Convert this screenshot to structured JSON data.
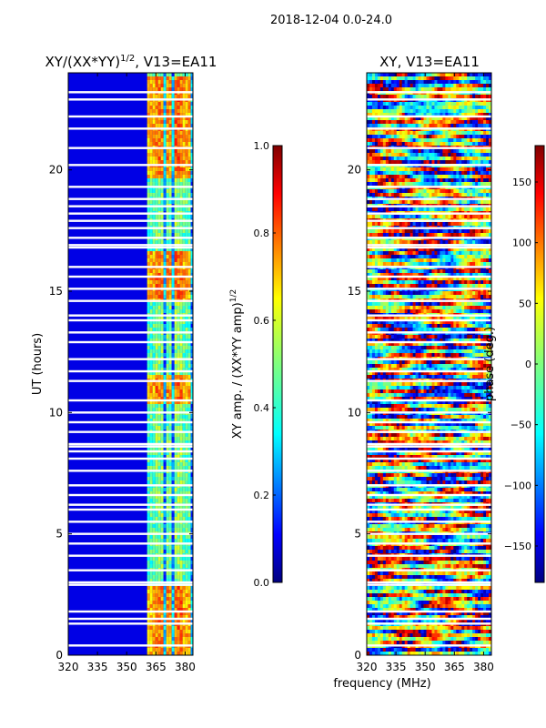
{
  "figure": {
    "suptitle": "2018-12-04 0.0-24.0"
  },
  "colors": {
    "jet": [
      "#00007f",
      "#0000ff",
      "#007fff",
      "#00ffff",
      "#7fff7f",
      "#ffff00",
      "#ff7f00",
      "#ff0000",
      "#7f0000"
    ],
    "background": "#ffffff",
    "gap": "#ffffff"
  },
  "chart_data": [
    {
      "type": "heatmap",
      "title_text": "XY/(XX*YY)",
      "title_exp": "1/2",
      "title_suffix": ", V13=EA11",
      "xlabel": "",
      "ylabel": "UT (hours)",
      "xlim": [
        320,
        384
      ],
      "ylim": [
        0,
        24
      ],
      "xticks": [
        320,
        335,
        350,
        365,
        380
      ],
      "yticks": [
        0,
        5,
        10,
        15,
        20
      ],
      "colorbar": {
        "label_text": "XY amp. / (XX*YY amp)",
        "label_exp": "1/2",
        "range": [
          0.0,
          1.0
        ],
        "ticks": [
          0.0,
          0.2,
          0.4,
          0.6,
          0.8,
          1.0
        ],
        "tick_labels": [
          "0.0",
          "0.2",
          "0.4",
          "0.6",
          "0.8",
          "1.0"
        ]
      },
      "active_band_mhz": [
        360.5,
        383
      ],
      "background_value": 0.1,
      "band_stripes": [
        {
          "center": 362,
          "value": 0.45
        },
        {
          "center": 366,
          "value": 0.5
        },
        {
          "center": 371,
          "value": 0.48
        },
        {
          "center": 376,
          "value": 0.52
        },
        {
          "center": 380,
          "value": 0.46
        }
      ],
      "bright_intervals": [
        [
          0.0,
          2.8
        ],
        [
          10.3,
          11.6
        ],
        [
          14.6,
          16.6
        ],
        [
          19.7,
          23.9
        ]
      ],
      "gap_rows_ut": [
        0.4,
        1.3,
        1.5,
        1.8,
        2.9,
        3.0,
        3.5,
        4.1,
        4.6,
        5.0,
        5.5,
        6.0,
        6.2,
        6.6,
        7.0,
        7.6,
        8.1,
        8.4,
        8.6,
        8.7,
        9.2,
        9.6,
        10.0,
        10.5,
        11.3,
        11.7,
        12.2,
        12.9,
        13.3,
        13.8,
        14.0,
        14.6,
        15.1,
        15.6,
        16.0,
        16.8,
        16.9,
        17.2,
        17.6,
        17.9,
        18.2,
        18.5,
        18.8,
        19.3,
        20.2,
        20.9,
        21.7,
        22.2,
        22.9,
        23.2
      ]
    },
    {
      "type": "heatmap",
      "title_text": "XY, V13=EA11",
      "xlabel": "frequency (MHz)",
      "ylabel": "",
      "xlim": [
        320,
        384
      ],
      "ylim": [
        0,
        24
      ],
      "xticks": [
        320,
        335,
        350,
        365,
        380
      ],
      "yticks": [
        0,
        5,
        10,
        15,
        20
      ],
      "colorbar": {
        "label_text": "phase (deg.)",
        "range": [
          -180,
          180
        ],
        "ticks": [
          -150,
          -100,
          -50,
          0,
          50,
          100,
          150
        ],
        "tick_labels": [
          "−150",
          "−100",
          "−50",
          "0",
          "50",
          "100",
          "150"
        ]
      },
      "gap_rows_ut": [
        0.4,
        1.3,
        1.5,
        1.8,
        2.9,
        3.0,
        3.5,
        4.1,
        4.6,
        5.0,
        5.5,
        6.0,
        6.2,
        6.6,
        7.0,
        7.6,
        8.1,
        8.4,
        8.6,
        8.7,
        9.2,
        9.6,
        10.0,
        10.5,
        11.3,
        11.7,
        12.2,
        12.9,
        13.3,
        13.8,
        14.0,
        14.6,
        15.1,
        15.6,
        16.0,
        16.8,
        16.9,
        17.2,
        17.6,
        17.9,
        18.2,
        18.5,
        18.8,
        19.3,
        20.2,
        20.9,
        21.7,
        22.2,
        22.9,
        23.2
      ]
    }
  ]
}
